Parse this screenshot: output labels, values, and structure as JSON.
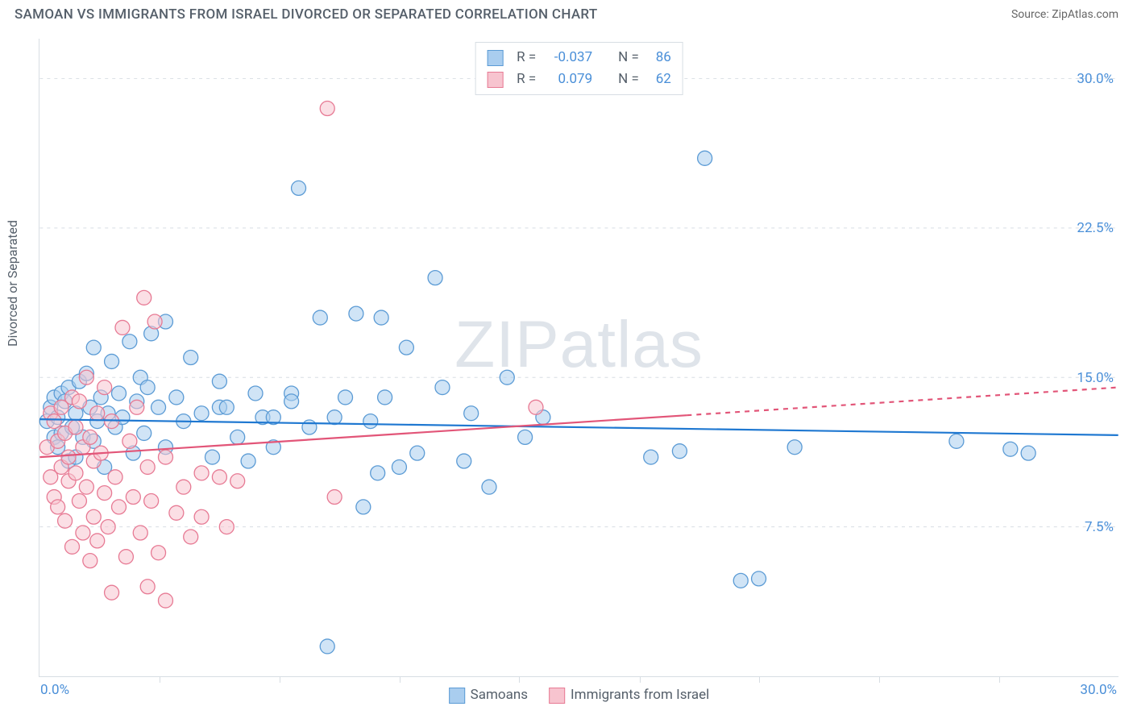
{
  "title": "SAMOAN VS IMMIGRANTS FROM ISRAEL DIVORCED OR SEPARATED CORRELATION CHART",
  "source": "Source: ZipAtlas.com",
  "watermark_zip": "ZIP",
  "watermark_atlas": "atlas",
  "y_axis_label": "Divorced or Separated",
  "chart": {
    "type": "scatter",
    "xlim": [
      0,
      30
    ],
    "ylim": [
      0,
      32
    ],
    "x_origin_label": "0.0%",
    "x_end_label": "30.0%",
    "yticks": [
      {
        "v": 7.5,
        "label": "7.5%"
      },
      {
        "v": 15.0,
        "label": "15.0%"
      },
      {
        "v": 22.5,
        "label": "22.5%"
      },
      {
        "v": 30.0,
        "label": "30.0%"
      }
    ],
    "xticks_minor": [
      3.33,
      6.67,
      10,
      13.33,
      16.67,
      20,
      23.33,
      26.67
    ],
    "grid_color": "#d7dde3",
    "background_color": "#ffffff",
    "marker_radius": 9,
    "marker_opacity": 0.55,
    "line_width": 2.2,
    "dash_pattern": "6 6",
    "series": [
      {
        "name": "Samoans",
        "marker_fill": "#a9cdef",
        "marker_stroke": "#5b9bd5",
        "line_color": "#1f78d1",
        "R": "-0.037",
        "N": "86",
        "trend": {
          "y_at_x0": 12.9,
          "y_at_x30": 12.1,
          "solid_until_x": 30
        },
        "points": [
          [
            0.2,
            12.8
          ],
          [
            0.3,
            13.5
          ],
          [
            0.4,
            12.0
          ],
          [
            0.4,
            14.0
          ],
          [
            0.5,
            11.5
          ],
          [
            0.5,
            13.0
          ],
          [
            0.6,
            12.2
          ],
          [
            0.6,
            14.2
          ],
          [
            0.7,
            13.8
          ],
          [
            0.8,
            10.8
          ],
          [
            0.8,
            14.5
          ],
          [
            0.9,
            12.5
          ],
          [
            1.0,
            13.2
          ],
          [
            1.0,
            11.0
          ],
          [
            1.1,
            14.8
          ],
          [
            1.2,
            12.0
          ],
          [
            1.3,
            15.2
          ],
          [
            1.4,
            13.5
          ],
          [
            1.5,
            11.8
          ],
          [
            1.5,
            16.5
          ],
          [
            1.6,
            12.8
          ],
          [
            1.7,
            14.0
          ],
          [
            1.8,
            10.5
          ],
          [
            1.9,
            13.2
          ],
          [
            2.0,
            15.8
          ],
          [
            2.1,
            12.5
          ],
          [
            2.2,
            14.2
          ],
          [
            2.3,
            13.0
          ],
          [
            2.5,
            16.8
          ],
          [
            2.6,
            11.2
          ],
          [
            2.7,
            13.8
          ],
          [
            2.8,
            15.0
          ],
          [
            2.9,
            12.2
          ],
          [
            3.0,
            14.5
          ],
          [
            3.1,
            17.2
          ],
          [
            3.3,
            13.5
          ],
          [
            3.5,
            11.5
          ],
          [
            3.5,
            17.8
          ],
          [
            3.8,
            14.0
          ],
          [
            4.0,
            12.8
          ],
          [
            4.2,
            16.0
          ],
          [
            4.5,
            13.2
          ],
          [
            4.8,
            11.0
          ],
          [
            5.0,
            14.8
          ],
          [
            5.0,
            13.5
          ],
          [
            5.2,
            13.5
          ],
          [
            5.5,
            12.0
          ],
          [
            5.8,
            10.8
          ],
          [
            6.0,
            14.2
          ],
          [
            6.2,
            13.0
          ],
          [
            6.5,
            13.0
          ],
          [
            6.5,
            11.5
          ],
          [
            7.0,
            14.2
          ],
          [
            7.0,
            13.8
          ],
          [
            7.2,
            24.5
          ],
          [
            7.5,
            12.5
          ],
          [
            7.8,
            18.0
          ],
          [
            8.0,
            1.5
          ],
          [
            8.2,
            13.0
          ],
          [
            8.5,
            14.0
          ],
          [
            8.8,
            18.2
          ],
          [
            9.0,
            8.5
          ],
          [
            9.2,
            12.8
          ],
          [
            9.4,
            10.2
          ],
          [
            9.5,
            18.0
          ],
          [
            9.6,
            14.0
          ],
          [
            10.0,
            10.5
          ],
          [
            10.2,
            16.5
          ],
          [
            10.5,
            11.2
          ],
          [
            11.0,
            20.0
          ],
          [
            11.2,
            14.5
          ],
          [
            11.8,
            10.8
          ],
          [
            12.0,
            13.2
          ],
          [
            12.5,
            9.5
          ],
          [
            13.0,
            15.0
          ],
          [
            13.5,
            12.0
          ],
          [
            14.0,
            13.0
          ],
          [
            17.0,
            11.0
          ],
          [
            17.8,
            11.3
          ],
          [
            18.5,
            26.0
          ],
          [
            19.5,
            4.8
          ],
          [
            20.0,
            4.9
          ],
          [
            21.0,
            11.5
          ],
          [
            25.5,
            11.8
          ],
          [
            27.0,
            11.4
          ],
          [
            27.5,
            11.2
          ]
        ]
      },
      {
        "name": "Immigrants from Israel",
        "marker_fill": "#f7c4cf",
        "marker_stroke": "#e77a94",
        "line_color": "#e25578",
        "R": "0.079",
        "N": "62",
        "trend": {
          "y_at_x0": 11.0,
          "y_at_x30": 14.5,
          "solid_until_x": 18
        },
        "points": [
          [
            0.2,
            11.5
          ],
          [
            0.3,
            10.0
          ],
          [
            0.3,
            13.2
          ],
          [
            0.4,
            9.0
          ],
          [
            0.4,
            12.8
          ],
          [
            0.5,
            11.8
          ],
          [
            0.5,
            8.5
          ],
          [
            0.6,
            10.5
          ],
          [
            0.6,
            13.5
          ],
          [
            0.7,
            7.8
          ],
          [
            0.7,
            12.2
          ],
          [
            0.8,
            9.8
          ],
          [
            0.8,
            11.0
          ],
          [
            0.9,
            14.0
          ],
          [
            0.9,
            6.5
          ],
          [
            1.0,
            10.2
          ],
          [
            1.0,
            12.5
          ],
          [
            1.1,
            8.8
          ],
          [
            1.1,
            13.8
          ],
          [
            1.2,
            7.2
          ],
          [
            1.2,
            11.5
          ],
          [
            1.3,
            9.5
          ],
          [
            1.3,
            15.0
          ],
          [
            1.4,
            5.8
          ],
          [
            1.4,
            12.0
          ],
          [
            1.5,
            8.0
          ],
          [
            1.5,
            10.8
          ],
          [
            1.6,
            13.2
          ],
          [
            1.6,
            6.8
          ],
          [
            1.7,
            11.2
          ],
          [
            1.8,
            9.2
          ],
          [
            1.8,
            14.5
          ],
          [
            1.9,
            7.5
          ],
          [
            2.0,
            12.8
          ],
          [
            2.0,
            4.2
          ],
          [
            2.1,
            10.0
          ],
          [
            2.2,
            8.5
          ],
          [
            2.3,
            17.5
          ],
          [
            2.4,
            6.0
          ],
          [
            2.5,
            11.8
          ],
          [
            2.6,
            9.0
          ],
          [
            2.7,
            13.5
          ],
          [
            2.8,
            7.2
          ],
          [
            2.9,
            19.0
          ],
          [
            3.0,
            10.5
          ],
          [
            3.0,
            4.5
          ],
          [
            3.1,
            8.8
          ],
          [
            3.2,
            17.8
          ],
          [
            3.3,
            6.2
          ],
          [
            3.5,
            11.0
          ],
          [
            3.5,
            3.8
          ],
          [
            3.8,
            8.2
          ],
          [
            4.0,
            9.5
          ],
          [
            4.2,
            7.0
          ],
          [
            4.5,
            10.2
          ],
          [
            4.5,
            8.0
          ],
          [
            5.0,
            10.0
          ],
          [
            5.2,
            7.5
          ],
          [
            5.5,
            9.8
          ],
          [
            8.0,
            28.5
          ],
          [
            8.2,
            9.0
          ],
          [
            13.8,
            13.5
          ]
        ]
      }
    ]
  },
  "legend_bottom": {
    "s1": "Samoans",
    "s2": "Immigrants from Israel"
  },
  "legend_top": {
    "R_label": "R =",
    "N_label": "N ="
  }
}
